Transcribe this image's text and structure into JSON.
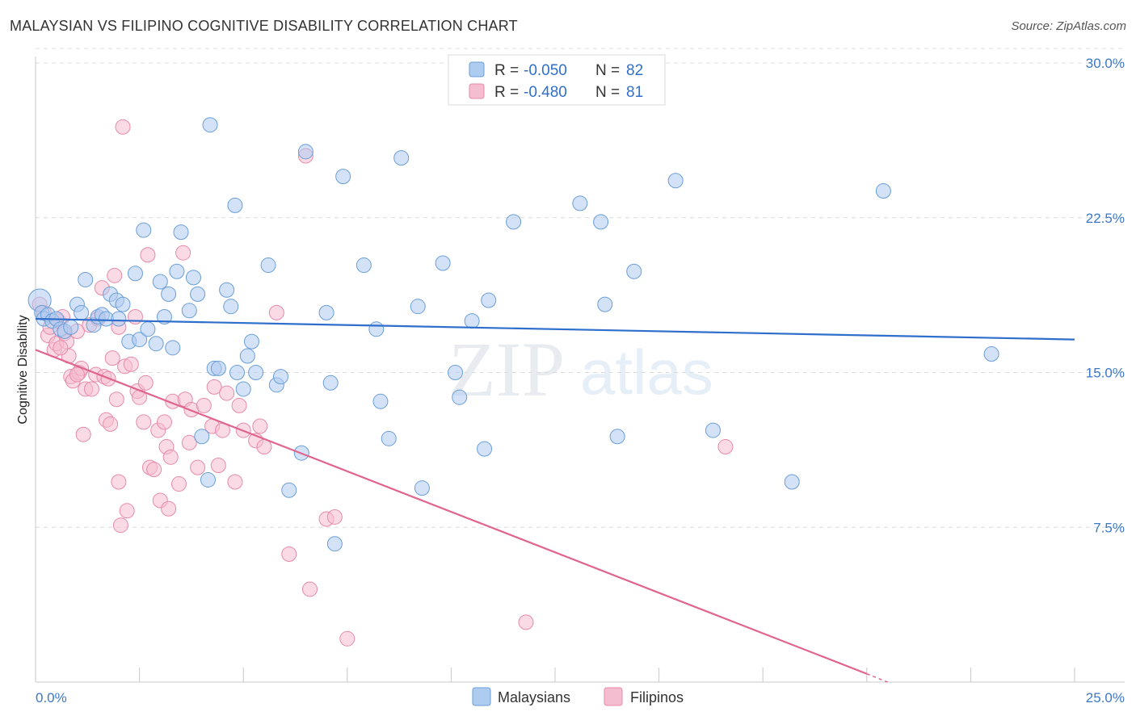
{
  "header": {
    "title": "MALAYSIAN VS FILIPINO COGNITIVE DISABILITY CORRELATION CHART",
    "source": "Source: ZipAtlas.com"
  },
  "watermark": {
    "zip": "ZIP",
    "atlas": "atlas"
  },
  "colors": {
    "blue_fill": "#aecbf0",
    "blue_stroke": "#6a9fd8",
    "blue_line": "#2f6fcb",
    "pink_fill": "#f5bdd0",
    "pink_stroke": "#e78aab",
    "pink_line": "#e0648e",
    "axis_text": "#3b78c6",
    "grid": "#dcdcdc"
  },
  "legend_top": [
    {
      "series": "Malaysians",
      "r_label": "R =",
      "r_value": "-0.050",
      "n_label": "N =",
      "n_value": "82"
    },
    {
      "series": "Filipinos",
      "r_label": "R =",
      "r_value": "-0.480",
      "n_label": "N =",
      "n_value": "81"
    }
  ],
  "chart_data": {
    "type": "scatter",
    "title": "MALAYSIAN VS FILIPINO COGNITIVE DISABILITY CORRELATION CHART",
    "xlabel": "",
    "ylabel": "Cognitive Disability",
    "xlim": [
      0,
      25
    ],
    "ylim": [
      0,
      30
    ],
    "x_tick_labels": [
      "0.0%",
      "25.0%"
    ],
    "y_ticks": [
      7.5,
      15.0,
      22.5,
      30.0
    ],
    "y_tick_labels": [
      "7.5%",
      "15.0%",
      "22.5%",
      "30.0%"
    ],
    "grid": true,
    "legend": [
      {
        "name": "Malaysians",
        "position": "bottom-center"
      },
      {
        "name": "Filipinos",
        "position": "bottom-center"
      }
    ],
    "series": [
      {
        "name": "Malaysians",
        "r": -0.05,
        "n": 82,
        "trend": {
          "x": [
            0,
            25
          ],
          "y": [
            17.6,
            16.6
          ]
        },
        "points": [
          {
            "x": 0.1,
            "y": 18.5
          },
          {
            "x": 0.15,
            "y": 17.9
          },
          {
            "x": 0.2,
            "y": 17.6
          },
          {
            "x": 0.3,
            "y": 17.8
          },
          {
            "x": 0.4,
            "y": 17.5
          },
          {
            "x": 0.5,
            "y": 17.6
          },
          {
            "x": 0.6,
            "y": 17.1
          },
          {
            "x": 0.7,
            "y": 17.0
          },
          {
            "x": 0.85,
            "y": 17.2
          },
          {
            "x": 1.0,
            "y": 18.3
          },
          {
            "x": 1.1,
            "y": 17.9
          },
          {
            "x": 1.2,
            "y": 19.5
          },
          {
            "x": 1.4,
            "y": 17.3
          },
          {
            "x": 1.5,
            "y": 17.7
          },
          {
            "x": 1.6,
            "y": 17.8
          },
          {
            "x": 1.7,
            "y": 17.6
          },
          {
            "x": 1.8,
            "y": 18.8
          },
          {
            "x": 1.95,
            "y": 18.5
          },
          {
            "x": 2.0,
            "y": 17.6
          },
          {
            "x": 2.1,
            "y": 18.3
          },
          {
            "x": 2.25,
            "y": 16.5
          },
          {
            "x": 2.4,
            "y": 19.8
          },
          {
            "x": 2.5,
            "y": 16.6
          },
          {
            "x": 2.6,
            "y": 21.9
          },
          {
            "x": 2.7,
            "y": 17.1
          },
          {
            "x": 2.9,
            "y": 16.4
          },
          {
            "x": 3.0,
            "y": 19.4
          },
          {
            "x": 3.1,
            "y": 17.7
          },
          {
            "x": 3.2,
            "y": 18.8
          },
          {
            "x": 3.3,
            "y": 16.2
          },
          {
            "x": 3.4,
            "y": 19.9
          },
          {
            "x": 3.5,
            "y": 21.8
          },
          {
            "x": 3.7,
            "y": 18.0
          },
          {
            "x": 3.8,
            "y": 19.6
          },
          {
            "x": 3.9,
            "y": 18.8
          },
          {
            "x": 4.0,
            "y": 11.9
          },
          {
            "x": 4.15,
            "y": 9.8
          },
          {
            "x": 4.2,
            "y": 27.0
          },
          {
            "x": 4.3,
            "y": 15.2
          },
          {
            "x": 4.4,
            "y": 15.2
          },
          {
            "x": 4.6,
            "y": 19.0
          },
          {
            "x": 4.7,
            "y": 18.2
          },
          {
            "x": 4.8,
            "y": 23.1
          },
          {
            "x": 4.85,
            "y": 15.0
          },
          {
            "x": 5.0,
            "y": 14.2
          },
          {
            "x": 5.1,
            "y": 15.8
          },
          {
            "x": 5.2,
            "y": 16.5
          },
          {
            "x": 5.3,
            "y": 15.0
          },
          {
            "x": 5.6,
            "y": 20.2
          },
          {
            "x": 5.8,
            "y": 14.4
          },
          {
            "x": 5.9,
            "y": 14.8
          },
          {
            "x": 6.1,
            "y": 9.3
          },
          {
            "x": 6.4,
            "y": 11.1
          },
          {
            "x": 6.5,
            "y": 25.7
          },
          {
            "x": 7.0,
            "y": 17.9
          },
          {
            "x": 7.1,
            "y": 14.5
          },
          {
            "x": 7.2,
            "y": 6.7
          },
          {
            "x": 7.4,
            "y": 24.5
          },
          {
            "x": 7.9,
            "y": 20.2
          },
          {
            "x": 8.2,
            "y": 17.1
          },
          {
            "x": 8.3,
            "y": 13.6
          },
          {
            "x": 8.5,
            "y": 11.8
          },
          {
            "x": 8.8,
            "y": 25.4
          },
          {
            "x": 9.2,
            "y": 18.2
          },
          {
            "x": 9.3,
            "y": 9.4
          },
          {
            "x": 9.8,
            "y": 20.3
          },
          {
            "x": 10.1,
            "y": 15.0
          },
          {
            "x": 10.2,
            "y": 13.8
          },
          {
            "x": 10.5,
            "y": 17.5
          },
          {
            "x": 10.8,
            "y": 11.3
          },
          {
            "x": 10.9,
            "y": 18.5
          },
          {
            "x": 11.5,
            "y": 22.3
          },
          {
            "x": 13.1,
            "y": 23.2
          },
          {
            "x": 13.6,
            "y": 22.3
          },
          {
            "x": 13.7,
            "y": 18.3
          },
          {
            "x": 14.0,
            "y": 11.9
          },
          {
            "x": 14.4,
            "y": 19.9
          },
          {
            "x": 15.4,
            "y": 24.3
          },
          {
            "x": 16.3,
            "y": 12.2
          },
          {
            "x": 18.2,
            "y": 9.7
          },
          {
            "x": 20.4,
            "y": 23.8
          },
          {
            "x": 23.0,
            "y": 15.9
          }
        ]
      },
      {
        "name": "Filipinos",
        "r": -0.48,
        "n": 81,
        "trend": {
          "x": [
            0,
            20.0
          ],
          "y": [
            16.1,
            0.4
          ]
        },
        "trend_dashed": {
          "x": [
            20.0,
            20.5
          ],
          "y": [
            0.4,
            0.0
          ]
        },
        "points": [
          {
            "x": 0.1,
            "y": 18.3
          },
          {
            "x": 0.2,
            "y": 17.9
          },
          {
            "x": 0.3,
            "y": 16.8
          },
          {
            "x": 0.35,
            "y": 17.2
          },
          {
            "x": 0.45,
            "y": 16.1
          },
          {
            "x": 0.5,
            "y": 16.4
          },
          {
            "x": 0.55,
            "y": 17.5
          },
          {
            "x": 0.65,
            "y": 17.7
          },
          {
            "x": 0.7,
            "y": 16.9
          },
          {
            "x": 0.75,
            "y": 16.5
          },
          {
            "x": 0.8,
            "y": 15.8
          },
          {
            "x": 0.85,
            "y": 14.8
          },
          {
            "x": 0.9,
            "y": 14.6
          },
          {
            "x": 1.0,
            "y": 17.0
          },
          {
            "x": 1.05,
            "y": 15.0
          },
          {
            "x": 1.1,
            "y": 15.2
          },
          {
            "x": 1.15,
            "y": 12.0
          },
          {
            "x": 1.2,
            "y": 14.2
          },
          {
            "x": 1.3,
            "y": 17.3
          },
          {
            "x": 1.35,
            "y": 14.2
          },
          {
            "x": 1.45,
            "y": 14.9
          },
          {
            "x": 1.5,
            "y": 17.6
          },
          {
            "x": 1.6,
            "y": 19.1
          },
          {
            "x": 1.65,
            "y": 14.8
          },
          {
            "x": 1.7,
            "y": 12.7
          },
          {
            "x": 1.75,
            "y": 14.7
          },
          {
            "x": 1.8,
            "y": 12.5
          },
          {
            "x": 1.85,
            "y": 15.7
          },
          {
            "x": 1.9,
            "y": 19.7
          },
          {
            "x": 1.95,
            "y": 13.7
          },
          {
            "x": 2.0,
            "y": 9.7
          },
          {
            "x": 2.05,
            "y": 7.6
          },
          {
            "x": 2.1,
            "y": 26.9
          },
          {
            "x": 2.15,
            "y": 15.3
          },
          {
            "x": 2.2,
            "y": 8.3
          },
          {
            "x": 2.3,
            "y": 15.4
          },
          {
            "x": 2.4,
            "y": 17.7
          },
          {
            "x": 2.45,
            "y": 14.1
          },
          {
            "x": 2.5,
            "y": 13.8
          },
          {
            "x": 2.6,
            "y": 12.6
          },
          {
            "x": 2.65,
            "y": 14.5
          },
          {
            "x": 2.7,
            "y": 20.7
          },
          {
            "x": 2.75,
            "y": 10.4
          },
          {
            "x": 2.85,
            "y": 10.3
          },
          {
            "x": 2.95,
            "y": 12.2
          },
          {
            "x": 3.0,
            "y": 8.8
          },
          {
            "x": 3.1,
            "y": 12.6
          },
          {
            "x": 3.15,
            "y": 11.4
          },
          {
            "x": 3.2,
            "y": 8.4
          },
          {
            "x": 3.25,
            "y": 10.9
          },
          {
            "x": 3.3,
            "y": 13.6
          },
          {
            "x": 3.45,
            "y": 9.6
          },
          {
            "x": 3.55,
            "y": 20.8
          },
          {
            "x": 3.6,
            "y": 13.7
          },
          {
            "x": 3.7,
            "y": 11.6
          },
          {
            "x": 3.75,
            "y": 13.2
          },
          {
            "x": 3.9,
            "y": 10.4
          },
          {
            "x": 4.05,
            "y": 13.4
          },
          {
            "x": 4.25,
            "y": 12.4
          },
          {
            "x": 4.3,
            "y": 14.3
          },
          {
            "x": 4.4,
            "y": 10.5
          },
          {
            "x": 4.5,
            "y": 12.2
          },
          {
            "x": 4.6,
            "y": 14.0
          },
          {
            "x": 4.8,
            "y": 9.7
          },
          {
            "x": 4.9,
            "y": 13.4
          },
          {
            "x": 5.0,
            "y": 12.2
          },
          {
            "x": 5.3,
            "y": 11.7
          },
          {
            "x": 5.4,
            "y": 12.4
          },
          {
            "x": 5.5,
            "y": 11.4
          },
          {
            "x": 5.8,
            "y": 17.9
          },
          {
            "x": 6.1,
            "y": 6.2
          },
          {
            "x": 6.5,
            "y": 25.5
          },
          {
            "x": 6.6,
            "y": 4.5
          },
          {
            "x": 7.0,
            "y": 7.9
          },
          {
            "x": 7.2,
            "y": 8.0
          },
          {
            "x": 7.5,
            "y": 2.1
          },
          {
            "x": 11.8,
            "y": 2.9
          },
          {
            "x": 16.6,
            "y": 11.4
          },
          {
            "x": 0.6,
            "y": 16.2
          },
          {
            "x": 1.0,
            "y": 14.9
          },
          {
            "x": 2.0,
            "y": 17.2
          }
        ]
      }
    ]
  },
  "bottom_legend": [
    {
      "label": "Malaysians"
    },
    {
      "label": "Filipinos"
    }
  ]
}
